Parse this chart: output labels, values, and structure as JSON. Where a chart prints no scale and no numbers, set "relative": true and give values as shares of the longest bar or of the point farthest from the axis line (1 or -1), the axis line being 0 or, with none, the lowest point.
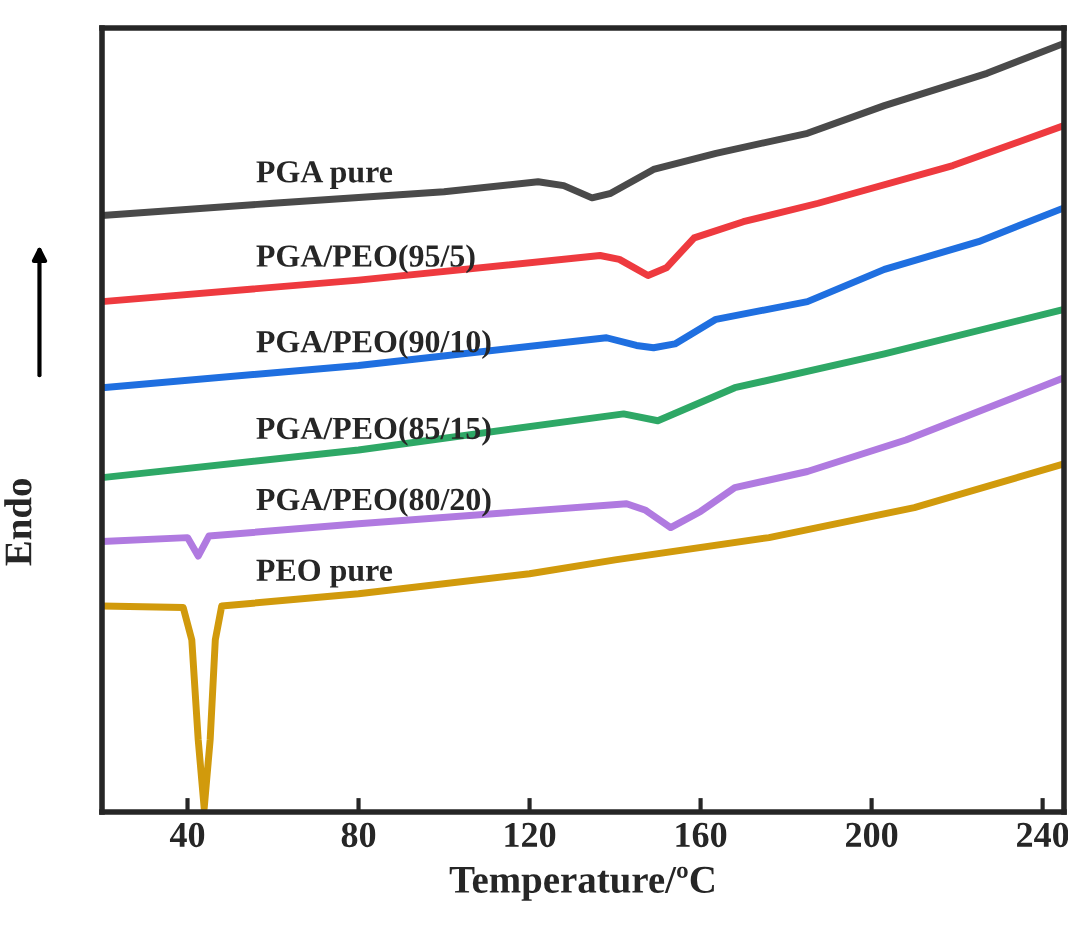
{
  "chart_data": {
    "type": "line",
    "xlabel": "Temperature/ºC",
    "ylabel": "Endo",
    "relative": true,
    "xlim": [
      20,
      245
    ],
    "xticks": [
      40,
      80,
      120,
      160,
      200,
      240
    ],
    "grid": false,
    "marker": "none",
    "line_style": "solid",
    "series": [
      {
        "name": "PGA pure",
        "color": "#4a4a4a",
        "x": [
          20,
          60,
          100,
          122,
          128,
          134.6,
          139,
          149,
          163.6,
          185,
          203,
          227,
          245
        ],
        "values": [
          0.776,
          0.792,
          0.807,
          0.82,
          0.815,
          0.799,
          0.805,
          0.836,
          0.857,
          0.883,
          0.919,
          0.961,
          1.0
        ]
      },
      {
        "name": "PGA/PEO(95/5)",
        "color": "#ee3a3f",
        "x": [
          20,
          80,
          136.5,
          141,
          147.7,
          152,
          158.5,
          170,
          187.5,
          219,
          245
        ],
        "values": [
          0.664,
          0.692,
          0.724,
          0.719,
          0.698,
          0.708,
          0.747,
          0.768,
          0.792,
          0.841,
          0.893
        ]
      },
      {
        "name": "PGA/PEO(90/10)",
        "color": "#1f6fe0",
        "x": [
          20,
          80,
          138,
          145,
          149,
          154,
          163.6,
          185,
          203,
          225,
          245
        ],
        "values": [
          0.552,
          0.581,
          0.617,
          0.607,
          0.604,
          0.609,
          0.641,
          0.664,
          0.706,
          0.742,
          0.786
        ]
      },
      {
        "name": "PGA/PEO(85/15)",
        "color": "#2ea866",
        "x": [
          20,
          80,
          142,
          150,
          168,
          203,
          245
        ],
        "values": [
          0.435,
          0.471,
          0.518,
          0.509,
          0.552,
          0.596,
          0.654
        ]
      },
      {
        "name": "PGA/PEO(80/20)",
        "color": "#b07ae0",
        "x": [
          20,
          40,
          42.5,
          45,
          80,
          142.7,
          147,
          153,
          160,
          168,
          185,
          208,
          225,
          245
        ],
        "values": [
          0.352,
          0.357,
          0.333,
          0.359,
          0.375,
          0.401,
          0.393,
          0.37,
          0.391,
          0.422,
          0.443,
          0.484,
          0.521,
          0.565
        ]
      },
      {
        "name": "PEO pure",
        "color": "#d19a0c",
        "x": [
          20,
          39,
          41,
          42.5,
          43.9,
          45.3,
          46.5,
          48,
          80,
          120,
          140,
          176,
          210,
          245
        ],
        "values": [
          0.268,
          0.266,
          0.224,
          0.094,
          0.005,
          0.094,
          0.224,
          0.268,
          0.284,
          0.31,
          0.328,
          0.357,
          0.396,
          0.453
        ]
      }
    ]
  }
}
